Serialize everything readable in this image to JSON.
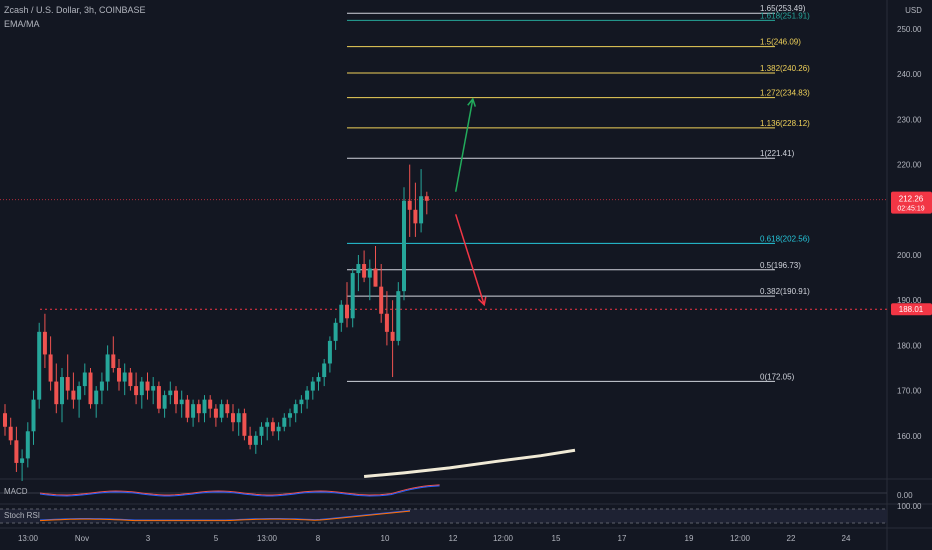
{
  "header": {
    "symbol_line": "Zcash / U.S. Dollar, 3h, COINBASE",
    "indicator": "EMA/MA",
    "currency": "USD"
  },
  "panes": {
    "macd": {
      "label": "MACD",
      "value": "0.00"
    },
    "stoch": {
      "label": "Stoch RSI",
      "value": "100.00"
    }
  },
  "price_tags": {
    "last": {
      "price": "212.26",
      "timer": "02:45:19",
      "value": 212.26
    },
    "level": {
      "price": "188.01",
      "value": 188.01
    }
  },
  "chart_data": {
    "type": "candlestick",
    "ylim": [
      150,
      256
    ],
    "y_ticks": [
      {
        "v": 250,
        "t": "250.00"
      },
      {
        "v": 240,
        "t": "240.00"
      },
      {
        "v": 230,
        "t": "230.00"
      },
      {
        "v": 220,
        "t": "220.00"
      },
      {
        "v": 200,
        "t": "200.00"
      },
      {
        "v": 190,
        "t": "190.00"
      },
      {
        "v": 180,
        "t": "180.00"
      },
      {
        "v": 170,
        "t": "170.00"
      },
      {
        "v": 160,
        "t": "160.00"
      }
    ],
    "x_ticks": [
      "13:00",
      "Nov",
      "3",
      "5",
      "13:00",
      "8",
      "10",
      "12",
      "12:00",
      "15",
      "17",
      "19",
      "12:00",
      "22",
      "24"
    ],
    "fib_levels": [
      {
        "label": "1.65(253.49)",
        "value": 253.49,
        "color": "#d1d4dc"
      },
      {
        "label": "1.618(251.91)",
        "value": 251.91,
        "color": "#26a69a"
      },
      {
        "label": "1.5(246.09)",
        "value": 246.09,
        "color": "#f0d25a"
      },
      {
        "label": "1.382(240.26)",
        "value": 240.26,
        "color": "#f0d25a"
      },
      {
        "label": "1.272(234.83)",
        "value": 234.83,
        "color": "#f0d25a"
      },
      {
        "label": "1.136(228.12)",
        "value": 228.12,
        "color": "#f0d25a"
      },
      {
        "label": "1(221.41)",
        "value": 221.41,
        "color": "#d1d4dc"
      },
      {
        "label": "0.618(202.56)",
        "value": 202.56,
        "color": "#26c6da"
      },
      {
        "label": "0.5(196.73)",
        "value": 196.73,
        "color": "#d1d4dc"
      },
      {
        "label": "0.382(190.91)",
        "value": 190.91,
        "color": "#d1d4dc"
      },
      {
        "label": "0(172.05)",
        "value": 172.05,
        "color": "#d1d4dc"
      }
    ],
    "candles": [
      [
        165,
        167,
        160,
        162
      ],
      [
        162,
        164,
        158,
        159
      ],
      [
        159,
        162,
        152,
        154
      ],
      [
        154,
        157,
        150,
        155
      ],
      [
        155,
        163,
        153,
        161
      ],
      [
        161,
        170,
        158,
        168
      ],
      [
        168,
        185,
        166,
        183
      ],
      [
        183,
        187,
        175,
        178
      ],
      [
        178,
        182,
        170,
        172
      ],
      [
        172,
        176,
        165,
        167
      ],
      [
        167,
        175,
        163,
        173
      ],
      [
        173,
        178,
        168,
        170
      ],
      [
        170,
        174,
        166,
        168
      ],
      [
        168,
        172,
        164,
        171
      ],
      [
        171,
        176,
        169,
        174
      ],
      [
        174,
        175,
        166,
        167
      ],
      [
        167,
        171,
        164,
        170
      ],
      [
        170,
        174,
        167,
        172
      ],
      [
        172,
        180,
        170,
        178
      ],
      [
        178,
        182,
        174,
        175
      ],
      [
        175,
        177,
        170,
        172
      ],
      [
        172,
        176,
        169,
        174
      ],
      [
        174,
        175,
        170,
        171
      ],
      [
        171,
        174,
        167,
        169
      ],
      [
        169,
        173,
        166,
        172
      ],
      [
        172,
        174,
        168,
        170
      ],
      [
        170,
        173,
        167,
        171
      ],
      [
        171,
        172,
        165,
        166
      ],
      [
        166,
        170,
        164,
        169
      ],
      [
        169,
        172,
        167,
        170
      ],
      [
        170,
        171,
        165,
        167
      ],
      [
        167,
        170,
        164,
        168
      ],
      [
        168,
        169,
        163,
        164
      ],
      [
        164,
        168,
        162,
        167
      ],
      [
        167,
        168,
        163,
        165
      ],
      [
        165,
        169,
        163,
        168
      ],
      [
        168,
        169,
        164,
        166
      ],
      [
        166,
        167,
        162,
        164
      ],
      [
        164,
        168,
        163,
        167
      ],
      [
        167,
        168,
        164,
        165
      ],
      [
        165,
        167,
        161,
        163
      ],
      [
        163,
        166,
        160,
        165
      ],
      [
        165,
        166,
        159,
        160
      ],
      [
        160,
        162,
        157,
        158
      ],
      [
        158,
        161,
        156,
        160
      ],
      [
        160,
        163,
        158,
        162
      ],
      [
        162,
        164,
        159,
        163
      ],
      [
        163,
        164,
        160,
        161
      ],
      [
        161,
        163,
        159,
        162
      ],
      [
        162,
        165,
        161,
        164
      ],
      [
        164,
        166,
        162,
        165
      ],
      [
        165,
        168,
        163,
        167
      ],
      [
        167,
        169,
        165,
        168
      ],
      [
        168,
        171,
        166,
        170
      ],
      [
        170,
        173,
        168,
        172
      ],
      [
        172,
        174,
        170,
        173
      ],
      [
        173,
        177,
        171,
        176
      ],
      [
        176,
        182,
        174,
        181
      ],
      [
        181,
        186,
        179,
        185
      ],
      [
        185,
        190,
        183,
        189
      ],
      [
        189,
        194,
        184,
        186
      ],
      [
        186,
        197,
        184,
        196
      ],
      [
        196,
        200,
        192,
        198
      ],
      [
        198,
        201,
        194,
        195
      ],
      [
        195,
        199,
        190,
        197
      ],
      [
        197,
        202,
        193,
        193
      ],
      [
        193,
        198,
        185,
        187
      ],
      [
        187,
        192,
        180,
        183
      ],
      [
        183,
        190,
        173,
        181
      ],
      [
        181,
        194,
        180,
        192
      ],
      [
        192,
        215,
        190,
        212
      ],
      [
        212,
        220,
        204,
        210
      ],
      [
        210,
        216,
        204,
        207
      ],
      [
        207,
        219,
        205,
        213
      ],
      [
        213,
        214,
        209,
        212
      ]
    ],
    "ma_line": [
      [
        63,
        151
      ],
      [
        70,
        151.8
      ],
      [
        78,
        152.9
      ],
      [
        86,
        154.3
      ],
      [
        94,
        155.6
      ],
      [
        100,
        156.8
      ]
    ],
    "arrows": [
      {
        "from": [
          101,
          214
        ],
        "to": [
          104,
          234.5
        ],
        "color": "#22ab5c"
      },
      {
        "from": [
          101,
          209
        ],
        "to": [
          106,
          189
        ],
        "color": "#f23645"
      }
    ]
  }
}
